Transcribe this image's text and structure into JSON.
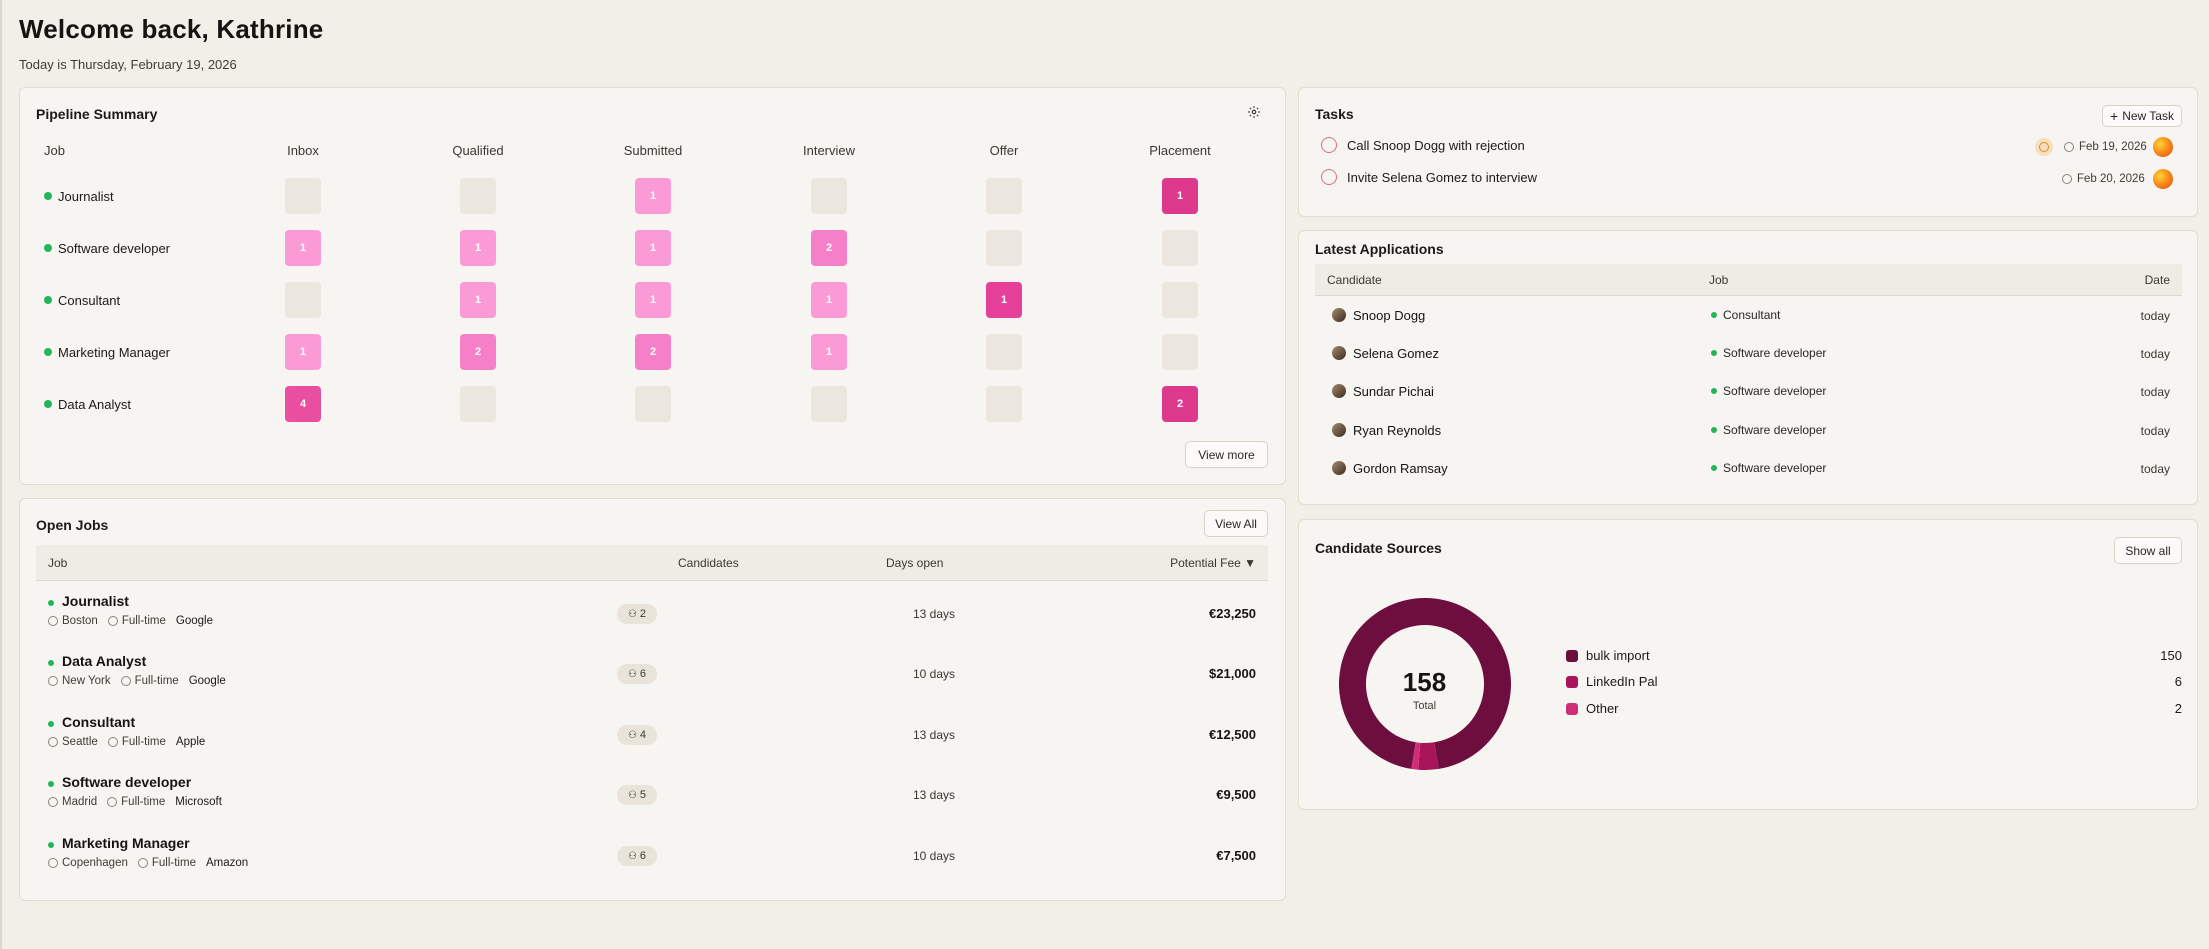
{
  "header": {
    "title": "Welcome back, Kathrine",
    "subtitle": "Today is Thursday, February 19, 2026"
  },
  "pipeline": {
    "title": "Pipeline Summary",
    "columns": [
      "Job",
      "Inbox",
      "Qualified",
      "Submitted",
      "Interview",
      "Offer",
      "Placement"
    ],
    "rows": [
      {
        "job": "Journalist",
        "cells": [
          "",
          "",
          "1",
          "",
          "",
          "1"
        ]
      },
      {
        "job": "Software developer",
        "cells": [
          "1",
          "1",
          "1",
          "2",
          "",
          ""
        ]
      },
      {
        "job": "Consultant",
        "cells": [
          "",
          "1",
          "1",
          "1",
          "1",
          ""
        ]
      },
      {
        "job": "Marketing Manager",
        "cells": [
          "1",
          "2",
          "2",
          "1",
          "",
          ""
        ]
      },
      {
        "job": "Data Analyst",
        "cells": [
          "4",
          "",
          "",
          "",
          "",
          "2"
        ]
      }
    ],
    "view_more": "View more",
    "colors": [
      "#fb9bd6",
      "#f77fc6",
      "#f25fb2",
      "#ec4fa3",
      "#e8419a",
      "#dd3a8e"
    ]
  },
  "open_jobs": {
    "title": "Open Jobs",
    "view_all": "View All",
    "columns": {
      "job": "Job",
      "candidates": "Candidates",
      "days_open": "Days open",
      "fee": "Potential Fee ▼"
    },
    "rows": [
      {
        "title": "Journalist",
        "location": "Boston",
        "type": "Full-time",
        "company": "Google",
        "candidates": "2",
        "days": "13 days",
        "fee": "€23,250"
      },
      {
        "title": "Data Analyst",
        "location": "New York",
        "type": "Full-time",
        "company": "Google",
        "candidates": "6",
        "days": "10 days",
        "fee": "$21,000"
      },
      {
        "title": "Consultant",
        "location": "Seattle",
        "type": "Full-time",
        "company": "Apple",
        "candidates": "4",
        "days": "13 days",
        "fee": "€12,500"
      },
      {
        "title": "Software developer",
        "location": "Madrid",
        "type": "Full-time",
        "company": "Microsoft",
        "candidates": "5",
        "days": "13 days",
        "fee": "€9,500"
      },
      {
        "title": "Marketing Manager",
        "location": "Copenhagen",
        "type": "Full-time",
        "company": "Amazon",
        "candidates": "6",
        "days": "10 days",
        "fee": "€7,500"
      }
    ]
  },
  "tasks": {
    "title": "Tasks",
    "new_task": "New Task",
    "items": [
      {
        "label": "Call Snoop Dogg with rejection",
        "date": "Feb 19, 2026"
      },
      {
        "label": "Invite Selena Gomez to interview",
        "date": "Feb 20, 2026"
      }
    ]
  },
  "applications": {
    "title": "Latest Applications",
    "columns": {
      "candidate": "Candidate",
      "job": "Job",
      "date": "Date"
    },
    "rows": [
      {
        "name": "Snoop Dogg",
        "job": "Consultant",
        "date": "today"
      },
      {
        "name": "Selena Gomez",
        "job": "Software developer",
        "date": "today"
      },
      {
        "name": "Sundar Pichai",
        "job": "Software developer",
        "date": "today"
      },
      {
        "name": "Ryan Reynolds",
        "job": "Software developer",
        "date": "today"
      },
      {
        "name": "Gordon Ramsay",
        "job": "Software developer",
        "date": "today"
      }
    ]
  },
  "sources": {
    "title": "Candidate Sources",
    "show_all": "Show all",
    "total": "158",
    "total_label": "Total",
    "items": [
      {
        "name": "bulk import",
        "value": "150",
        "color": "#6e0e3f"
      },
      {
        "name": "LinkedIn Pal",
        "value": "6",
        "color": "#a8155a"
      },
      {
        "name": "Other",
        "value": "2",
        "color": "#d02f78"
      }
    ]
  }
}
